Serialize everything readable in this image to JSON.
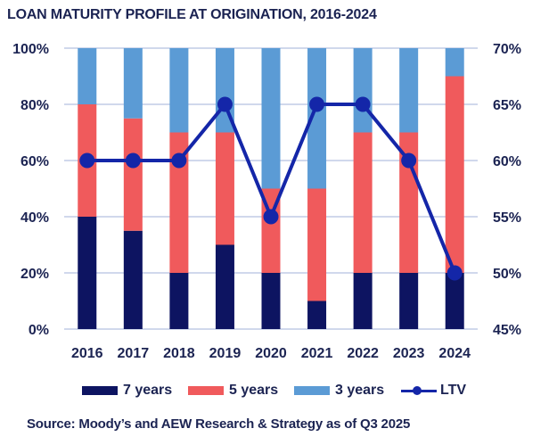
{
  "colors": {
    "seven_years": "#0D1461",
    "five_years": "#F05A5C",
    "three_years": "#5B9BD5",
    "ltv": "#1426A8",
    "grid": "#D0D8EC",
    "text": "#1B2352"
  },
  "chart_data": {
    "type": "bar",
    "stacked": true,
    "title": "LOAN MATURITY PROFILE AT ORIGINATION, 2016-2024",
    "xlabel": "",
    "ylabel": "",
    "categories": [
      "2016",
      "2017",
      "2018",
      "2019",
      "2020",
      "2021",
      "2022",
      "2023",
      "2024"
    ],
    "series": [
      {
        "name": "7 years",
        "axis": "left",
        "type": "bar",
        "values": [
          40,
          35,
          20,
          30,
          20,
          10,
          20,
          20,
          20
        ]
      },
      {
        "name": "5 years",
        "axis": "left",
        "type": "bar",
        "values": [
          40,
          40,
          50,
          40,
          30,
          40,
          50,
          50,
          70
        ]
      },
      {
        "name": "3 years",
        "axis": "left",
        "type": "bar",
        "values": [
          20,
          25,
          30,
          30,
          50,
          50,
          30,
          30,
          10
        ]
      },
      {
        "name": "LTV",
        "axis": "right",
        "type": "line",
        "values": [
          60,
          60,
          60,
          65,
          55,
          65,
          65,
          60,
          50
        ]
      }
    ],
    "y_left": {
      "ylim": [
        0,
        100
      ],
      "ticks": [
        0,
        20,
        40,
        60,
        80,
        100
      ],
      "tick_labels": [
        "0%",
        "20%",
        "40%",
        "60%",
        "80%",
        "100%"
      ]
    },
    "y_right": {
      "ylim": [
        45,
        70
      ],
      "ticks": [
        45,
        50,
        55,
        60,
        65,
        70
      ],
      "tick_labels": [
        "45%",
        "50%",
        "55%",
        "60%",
        "65%",
        "70%"
      ]
    },
    "grid": true,
    "legend": {
      "placement": "bottom",
      "entries": [
        "7 years",
        "5 years",
        "3 years",
        "LTV"
      ]
    }
  },
  "footer": {
    "source": "Source: Moody’s and AEW Research & Strategy as of Q3 2025"
  }
}
